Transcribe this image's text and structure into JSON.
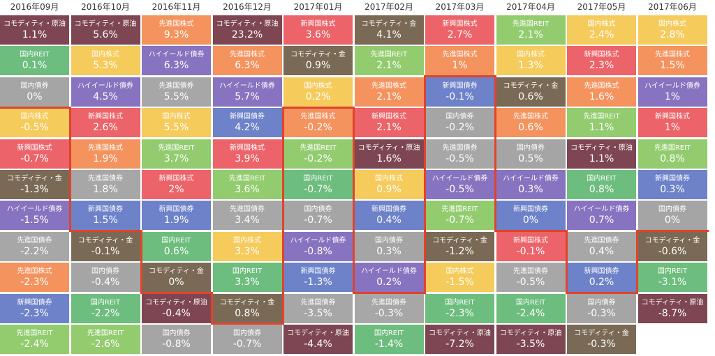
{
  "chart_data": {
    "type": "table",
    "months": [
      "2016年09月",
      "2016年10月",
      "2016年11月",
      "2016年12月",
      "2017年01月",
      "2017年02月",
      "2017年03月",
      "2017年04月",
      "2017年05月",
      "2017年06月"
    ],
    "columns": [
      [
        {
          "asset": "コモディティ・原油",
          "value": "1.1%"
        },
        {
          "asset": "国内REIT",
          "value": "0.1%"
        },
        {
          "asset": "国内債券",
          "value": "0%"
        },
        {
          "asset": "国内株式",
          "value": "-0.5%"
        },
        {
          "asset": "新興国株式",
          "value": "-0.7%"
        },
        {
          "asset": "コモディティ・金",
          "value": "-1.3%"
        },
        {
          "asset": "ハイイールド債券",
          "value": "-1.5%"
        },
        {
          "asset": "先進国債券",
          "value": "-2.2%"
        },
        {
          "asset": "先進国株式",
          "value": "-2.3%"
        },
        {
          "asset": "新興国債券",
          "value": "-2.3%"
        },
        {
          "asset": "先進国REIT",
          "value": "-2.4%"
        }
      ],
      [
        {
          "asset": "コモディティ・原油",
          "value": "5.6%"
        },
        {
          "asset": "国内株式",
          "value": "5.3%"
        },
        {
          "asset": "ハイイールド債券",
          "value": "4.5%"
        },
        {
          "asset": "新興国株式",
          "value": "2.6%"
        },
        {
          "asset": "先進国株式",
          "value": "1.9%"
        },
        {
          "asset": "先進国債券",
          "value": "1.8%"
        },
        {
          "asset": "新興国債券",
          "value": "1.5%"
        },
        {
          "asset": "コモディティ・金",
          "value": "-0.1%"
        },
        {
          "asset": "国内債券",
          "value": "-0.4%"
        },
        {
          "asset": "国内REIT",
          "value": "-2.2%"
        },
        {
          "asset": "先進国REIT",
          "value": "-2.6%"
        }
      ],
      [
        {
          "asset": "先進国株式",
          "value": "9.3%"
        },
        {
          "asset": "ハイイールド債券",
          "value": "6.3%"
        },
        {
          "asset": "先進国債券",
          "value": "5.5%"
        },
        {
          "asset": "国内株式",
          "value": "5.5%"
        },
        {
          "asset": "先進国REIT",
          "value": "3.7%"
        },
        {
          "asset": "新興国株式",
          "value": "2%"
        },
        {
          "asset": "新興国債券",
          "value": "1.9%"
        },
        {
          "asset": "国内REIT",
          "value": "0.6%"
        },
        {
          "asset": "コモディティ・金",
          "value": "0%"
        },
        {
          "asset": "コモディティ・原油",
          "value": "-0.4%"
        },
        {
          "asset": "国内債券",
          "value": "-0.8%"
        }
      ],
      [
        {
          "asset": "コモディティ・原油",
          "value": "23.2%"
        },
        {
          "asset": "先進国株式",
          "value": "6.3%"
        },
        {
          "asset": "ハイイールド債券",
          "value": "5.7%"
        },
        {
          "asset": "新興国債券",
          "value": "4.2%"
        },
        {
          "asset": "新興国株式",
          "value": "3.9%"
        },
        {
          "asset": "先進国REIT",
          "value": "3.6%"
        },
        {
          "asset": "先進国債券",
          "value": "3.4%"
        },
        {
          "asset": "国内株式",
          "value": "3.3%"
        },
        {
          "asset": "国内REIT",
          "value": "3.3%"
        },
        {
          "asset": "コモディティ・金",
          "value": "0.8%"
        },
        {
          "asset": "国内債券",
          "value": "-0.7%"
        }
      ],
      [
        {
          "asset": "新興国株式",
          "value": "3.6%"
        },
        {
          "asset": "コモディティ・金",
          "value": "0.9%"
        },
        {
          "asset": "国内株式",
          "value": "0.2%"
        },
        {
          "asset": "先進国株式",
          "value": "-0.2%"
        },
        {
          "asset": "先進国REIT",
          "value": "-0.2%"
        },
        {
          "asset": "国内REIT",
          "value": "-0.7%"
        },
        {
          "asset": "国内債券",
          "value": "-0.7%"
        },
        {
          "asset": "ハイイールド債券",
          "value": "-0.8%"
        },
        {
          "asset": "新興国債券",
          "value": "-1.3%"
        },
        {
          "asset": "先進国債券",
          "value": "-3.5%"
        },
        {
          "asset": "コモディティ・原油",
          "value": "-4.4%"
        }
      ],
      [
        {
          "asset": "コモディティ・金",
          "value": "4.1%"
        },
        {
          "asset": "先進国REIT",
          "value": "2.1%"
        },
        {
          "asset": "先進国株式",
          "value": "2.1%"
        },
        {
          "asset": "新興国株式",
          "value": "2.1%"
        },
        {
          "asset": "コモディティ・原油",
          "value": "1.6%"
        },
        {
          "asset": "国内株式",
          "value": "0.9%"
        },
        {
          "asset": "新興国債券",
          "value": "0.4%"
        },
        {
          "asset": "国内債券",
          "value": "0.3%"
        },
        {
          "asset": "ハイイールド債券",
          "value": "0.2%"
        },
        {
          "asset": "先進国債券",
          "value": "-0.3%"
        },
        {
          "asset": "国内REIT",
          "value": "-1.4%"
        }
      ],
      [
        {
          "asset": "新興国株式",
          "value": "2.7%"
        },
        {
          "asset": "先進国株式",
          "value": "1%"
        },
        {
          "asset": "新興国債券",
          "value": "-0.1%"
        },
        {
          "asset": "国内債券",
          "value": "-0.2%"
        },
        {
          "asset": "先進国債券",
          "value": "-0.5%"
        },
        {
          "asset": "ハイイールド債券",
          "value": "-0.5%"
        },
        {
          "asset": "先進国REIT",
          "value": "-0.7%"
        },
        {
          "asset": "コモディティ・金",
          "value": "-1.2%"
        },
        {
          "asset": "国内株式",
          "value": "-1.5%"
        },
        {
          "asset": "国内REIT",
          "value": "-2.3%"
        },
        {
          "asset": "コモディティ・原油",
          "value": "-7.2%"
        }
      ],
      [
        {
          "asset": "先進国REIT",
          "value": "2.1%"
        },
        {
          "asset": "国内株式",
          "value": "1.3%"
        },
        {
          "asset": "コモディティ・金",
          "value": "0.6%"
        },
        {
          "asset": "先進国株式",
          "value": "0.6%"
        },
        {
          "asset": "国内債券",
          "value": "0.5%"
        },
        {
          "asset": "ハイイールド債券",
          "value": "0.3%"
        },
        {
          "asset": "新興国債券",
          "value": "0%"
        },
        {
          "asset": "新興国株式",
          "value": "-0.1%"
        },
        {
          "asset": "先進国債券",
          "value": "-0.5%"
        },
        {
          "asset": "国内REIT",
          "value": "-2.4%"
        },
        {
          "asset": "コモディティ・原油",
          "value": "-3.5%"
        }
      ],
      [
        {
          "asset": "国内株式",
          "value": "2.4%"
        },
        {
          "asset": "新興国株式",
          "value": "2.3%"
        },
        {
          "asset": "先進国株式",
          "value": "1.6%"
        },
        {
          "asset": "先進国REIT",
          "value": "1.1%"
        },
        {
          "asset": "コモディティ・原油",
          "value": "1.1%"
        },
        {
          "asset": "国内REIT",
          "value": "0.8%"
        },
        {
          "asset": "ハイイールド債券",
          "value": "0.7%"
        },
        {
          "asset": "先進国債券",
          "value": "0.4%"
        },
        {
          "asset": "新興国債券",
          "value": "0.2%"
        },
        {
          "asset": "国内債券",
          "value": "-0.3%"
        },
        {
          "asset": "コモディティ・金",
          "value": "-0.3%"
        }
      ],
      [
        {
          "asset": "国内株式",
          "value": "2.8%"
        },
        {
          "asset": "先進国株式",
          "value": "1.5%"
        },
        {
          "asset": "ハイイールド債券",
          "value": "1%"
        },
        {
          "asset": "新興国株式",
          "value": "1%"
        },
        {
          "asset": "先進国REIT",
          "value": "0.8%"
        },
        {
          "asset": "新興国債券",
          "value": "0.3%"
        },
        {
          "asset": "国内債券",
          "value": "0%"
        },
        {
          "asset": "コモディティ・金",
          "value": "-0.6%"
        },
        {
          "asset": "国内REIT",
          "value": "-3.1%"
        },
        {
          "asset": "コモディティ・原油",
          "value": "-8.7%"
        }
      ]
    ],
    "asset_colors": {
      "コモディティ・原油": "#7d4652",
      "コモディティ・金": "#7a6a55",
      "国内REIT": "#6dbd7e",
      "国内債券": "#a5a5a5",
      "国内株式": "#f5cb5c",
      "新興国株式": "#ec6369",
      "新興国債券": "#6d82c8",
      "ハイイールド債券": "#8773c0",
      "先進国株式": "#f4935e",
      "先進国債券": "#a7a7a7",
      "先進国REIT": "#92cc6f"
    },
    "highlight_color": "#e0432c"
  }
}
